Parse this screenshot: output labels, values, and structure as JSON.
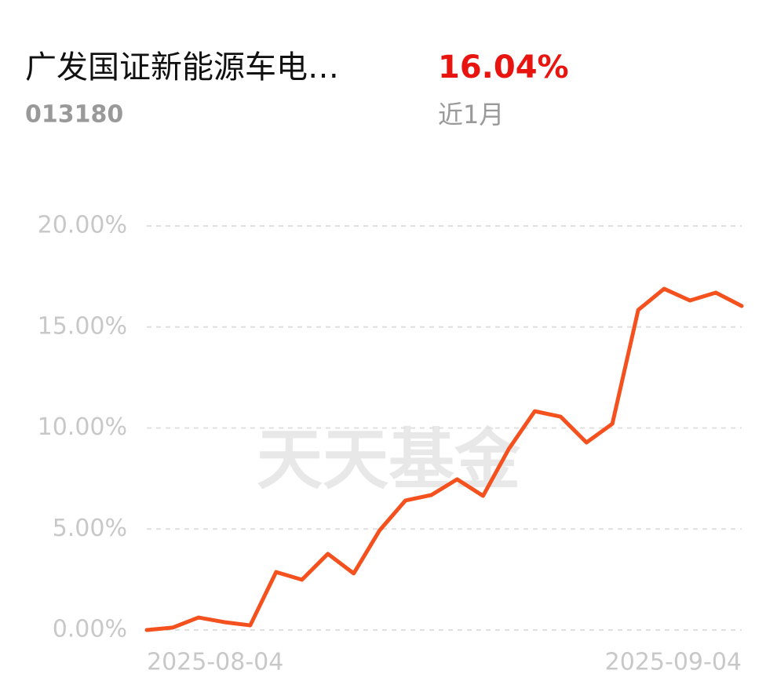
{
  "header": {
    "name": "广发国证新能源车电…",
    "code": "013180",
    "return": "16.04%",
    "period": "近1月"
  },
  "chart_data": {
    "type": "line",
    "watermark": "天天基金",
    "categories": [
      "2025-08-04",
      null,
      null,
      null,
      null,
      null,
      null,
      null,
      null,
      null,
      null,
      null,
      null,
      null,
      null,
      null,
      null,
      null,
      null,
      null,
      null,
      null,
      null,
      "2025-09-04"
    ],
    "series": [
      {
        "color": "#f4511e",
        "values": [
          0.0,
          0.12,
          0.62,
          0.39,
          0.23,
          2.87,
          2.49,
          3.77,
          2.8,
          4.93,
          6.41,
          6.68,
          7.46,
          6.64,
          8.97,
          10.83,
          10.56,
          9.28,
          10.21,
          15.84,
          16.89,
          16.31,
          16.7,
          16.04
        ]
      }
    ],
    "ylim": [
      0,
      20
    ],
    "yticks": [
      {
        "value": 0,
        "label": "0.00%"
      },
      {
        "value": 5,
        "label": "5.00%"
      },
      {
        "value": 10,
        "label": "10.00%"
      },
      {
        "value": 15,
        "label": "15.00%"
      },
      {
        "value": 20,
        "label": "20.00%"
      }
    ],
    "grid": true
  }
}
